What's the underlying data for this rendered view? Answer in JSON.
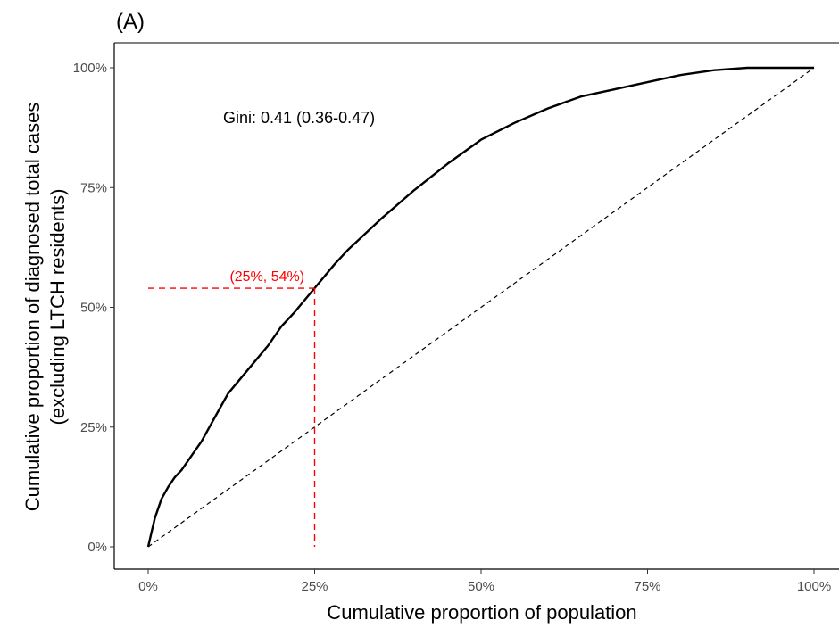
{
  "chart_data": {
    "type": "line",
    "panel_label": "(A)",
    "xlabel": "Cumulative proportion of population",
    "ylabel_line1": "Cumulative proportion of diagnosed total cases",
    "ylabel_line2": "(excluding LTCH residents)",
    "xlim": [
      0,
      1
    ],
    "ylim": [
      0,
      1
    ],
    "x_ticks": [
      "0%",
      "25%",
      "50%",
      "75%",
      "100%"
    ],
    "y_ticks": [
      "0%",
      "25%",
      "50%",
      "75%",
      "100%"
    ],
    "grid": false,
    "annotation": "Gini: 0.41 (0.36-0.47)",
    "reference_point_label": "(25%, 54%)",
    "reference_point": {
      "x": 0.25,
      "y": 0.54
    },
    "colors": {
      "curve": "#000000",
      "equality": "#000000",
      "reference": "#ff0000"
    },
    "series": [
      {
        "style": "solid",
        "x": [
          0,
          0.005,
          0.01,
          0.02,
          0.03,
          0.04,
          0.05,
          0.06,
          0.08,
          0.1,
          0.12,
          0.15,
          0.18,
          0.2,
          0.22,
          0.25,
          0.28,
          0.3,
          0.35,
          0.4,
          0.45,
          0.5,
          0.55,
          0.6,
          0.65,
          0.7,
          0.75,
          0.8,
          0.85,
          0.9,
          0.92,
          0.95,
          1.0
        ],
        "y": [
          0,
          0.03,
          0.06,
          0.1,
          0.125,
          0.145,
          0.16,
          0.18,
          0.22,
          0.27,
          0.32,
          0.37,
          0.42,
          0.46,
          0.49,
          0.54,
          0.59,
          0.62,
          0.685,
          0.745,
          0.8,
          0.85,
          0.885,
          0.915,
          0.94,
          0.955,
          0.97,
          0.985,
          0.995,
          1.0,
          1.0,
          1.0,
          1.0
        ]
      },
      {
        "style": "dashed",
        "x": [
          0,
          1
        ],
        "y": [
          0,
          1
        ]
      }
    ]
  }
}
